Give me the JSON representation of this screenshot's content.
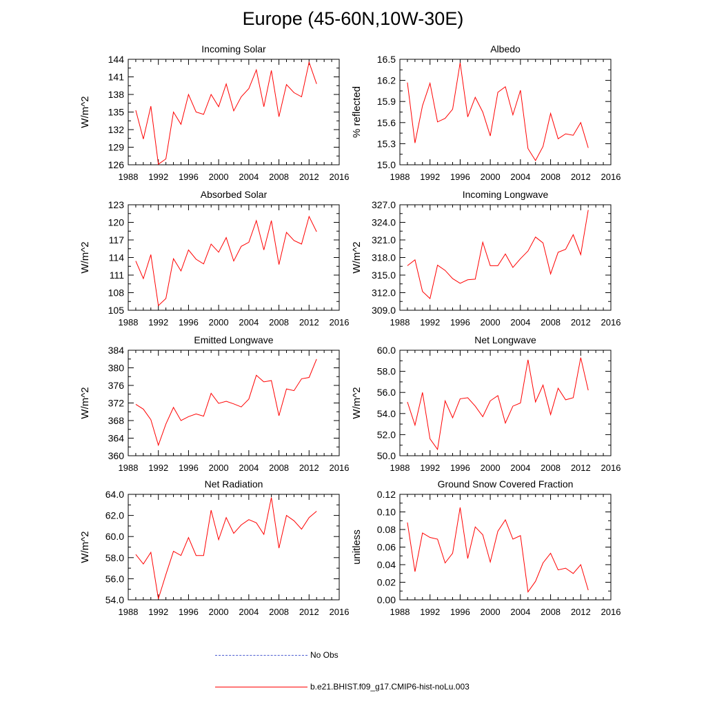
{
  "title": "Europe (45-60N,10W-30E)",
  "colors": {
    "model_line": "#ff0000",
    "obs_line": "#4a5bd0",
    "axis": "#000000"
  },
  "legend": [
    {
      "label": "No Obs",
      "style": "dashed",
      "color": "#4a5bd0"
    },
    {
      "label": "b.e21.BHIST.f09_g17.CMIP6-hist-noLu.003",
      "style": "solid",
      "color": "#ff0000"
    }
  ],
  "chart_data": [
    {
      "type": "line",
      "title": "Incoming Solar",
      "xlabel": "",
      "ylabel": "W/m^2",
      "xlim": [
        1988,
        2016
      ],
      "ylim": [
        126,
        144
      ],
      "xticks": [
        "1988",
        "1992",
        "1996",
        "2000",
        "2004",
        "2008",
        "2012",
        "2016"
      ],
      "yticks": [
        "126",
        "129",
        "132",
        "135",
        "138",
        "141",
        "144"
      ],
      "x": [
        1989,
        1990,
        1991,
        1992,
        1993,
        1994,
        1995,
        1996,
        1997,
        1998,
        1999,
        2000,
        2001,
        2002,
        2003,
        2004,
        2005,
        2006,
        2007,
        2008,
        2009,
        2010,
        2011,
        2012,
        2013
      ],
      "series": [
        {
          "values": [
            135.3,
            130.4,
            136.0,
            126.1,
            127.0,
            135.0,
            132.9,
            138.0,
            135.0,
            134.6,
            138.0,
            135.9,
            139.8,
            135.2,
            137.6,
            139.0,
            142.2,
            135.9,
            142.1,
            134.2,
            139.7,
            138.3,
            137.6,
            143.5,
            139.8
          ]
        }
      ]
    },
    {
      "type": "line",
      "title": "Albedo",
      "xlabel": "",
      "ylabel": "% reflected",
      "xlim": [
        1988,
        2016
      ],
      "ylim": [
        15.0,
        16.5
      ],
      "xticks": [
        "1988",
        "1992",
        "1996",
        "2000",
        "2004",
        "2008",
        "2012",
        "2016"
      ],
      "yticks": [
        "15.0",
        "15.3",
        "15.6",
        "15.9",
        "16.2",
        "16.5"
      ],
      "x": [
        1989,
        1990,
        1991,
        1992,
        1993,
        1994,
        1995,
        1996,
        1997,
        1998,
        1999,
        2000,
        2001,
        2002,
        2003,
        2004,
        2005,
        2006,
        2007,
        2008,
        2009,
        2010,
        2011,
        2012,
        2013
      ],
      "series": [
        {
          "values": [
            16.17,
            15.31,
            15.84,
            16.16,
            15.61,
            15.66,
            15.79,
            16.45,
            15.68,
            15.96,
            15.75,
            15.41,
            16.03,
            16.11,
            15.71,
            16.06,
            15.23,
            15.06,
            15.26,
            15.73,
            15.37,
            15.44,
            15.42,
            15.6,
            15.24
          ]
        }
      ]
    },
    {
      "type": "line",
      "title": "Absorbed Solar",
      "xlabel": "",
      "ylabel": "W/m^2",
      "xlim": [
        1988,
        2016
      ],
      "ylim": [
        105,
        123
      ],
      "xticks": [
        "1988",
        "1992",
        "1996",
        "2000",
        "2004",
        "2008",
        "2012",
        "2016"
      ],
      "yticks": [
        "105",
        "108",
        "111",
        "114",
        "117",
        "120",
        "123"
      ],
      "x": [
        1989,
        1990,
        1991,
        1992,
        1993,
        1994,
        1995,
        1996,
        1997,
        1998,
        1999,
        2000,
        2001,
        2002,
        2003,
        2004,
        2005,
        2006,
        2007,
        2008,
        2009,
        2010,
        2011,
        2012,
        2013
      ],
      "series": [
        {
          "values": [
            113.4,
            110.4,
            114.5,
            105.8,
            107.0,
            113.8,
            111.7,
            115.3,
            113.7,
            112.9,
            116.3,
            114.9,
            117.4,
            113.4,
            115.9,
            116.6,
            120.3,
            115.3,
            120.3,
            112.8,
            118.3,
            116.9,
            116.3,
            121.0,
            118.4
          ]
        }
      ]
    },
    {
      "type": "line",
      "title": "Incoming Longwave",
      "xlabel": "",
      "ylabel": "W/m^2",
      "xlim": [
        1988,
        2016
      ],
      "ylim": [
        309.0,
        327.0
      ],
      "xticks": [
        "1988",
        "1992",
        "1996",
        "2000",
        "2004",
        "2008",
        "2012",
        "2016"
      ],
      "yticks": [
        "309.0",
        "312.0",
        "315.0",
        "318.0",
        "321.0",
        "324.0",
        "327.0"
      ],
      "x": [
        1989,
        1990,
        1991,
        1992,
        1993,
        1994,
        1995,
        1996,
        1997,
        1998,
        1999,
        2000,
        2001,
        2002,
        2003,
        2004,
        2005,
        2006,
        2007,
        2008,
        2009,
        2010,
        2011,
        2012,
        2013
      ],
      "series": [
        {
          "values": [
            316.6,
            317.6,
            312.2,
            311.0,
            316.7,
            315.8,
            314.4,
            313.6,
            314.2,
            314.3,
            320.6,
            316.6,
            316.6,
            318.6,
            316.3,
            317.8,
            319.1,
            321.5,
            320.5,
            315.2,
            318.9,
            319.4,
            321.9,
            318.5,
            326.1
          ]
        }
      ]
    },
    {
      "type": "line",
      "title": "Emitted Longwave",
      "xlabel": "",
      "ylabel": "W/m^2",
      "xlim": [
        1988,
        2016
      ],
      "ylim": [
        360,
        384
      ],
      "xticks": [
        "1988",
        "1992",
        "1996",
        "2000",
        "2004",
        "2008",
        "2012",
        "2016"
      ],
      "yticks": [
        "360",
        "364",
        "368",
        "372",
        "376",
        "380",
        "384"
      ],
      "x": [
        1989,
        1990,
        1991,
        1992,
        1993,
        1994,
        1995,
        1996,
        1997,
        1998,
        1999,
        2000,
        2001,
        2002,
        2003,
        2004,
        2005,
        2006,
        2007,
        2008,
        2009,
        2010,
        2011,
        2012,
        2013
      ],
      "series": [
        {
          "values": [
            371.7,
            370.6,
            368.2,
            362.4,
            367.2,
            371.0,
            368.0,
            368.9,
            369.5,
            369.0,
            374.2,
            371.9,
            372.4,
            371.8,
            371.1,
            372.9,
            378.3,
            376.8,
            377.1,
            369.1,
            375.2,
            374.8,
            377.5,
            377.8,
            382.0
          ]
        }
      ]
    },
    {
      "type": "line",
      "title": "Net Longwave",
      "xlabel": "",
      "ylabel": "W/m^2",
      "xlim": [
        1988,
        2016
      ],
      "ylim": [
        50.0,
        60.0
      ],
      "xticks": [
        "1988",
        "1992",
        "1996",
        "2000",
        "2004",
        "2008",
        "2012",
        "2016"
      ],
      "yticks": [
        "50.0",
        "52.0",
        "54.0",
        "56.0",
        "58.0",
        "60.0"
      ],
      "x": [
        1989,
        1990,
        1991,
        1992,
        1993,
        1994,
        1995,
        1996,
        1997,
        1998,
        1999,
        2000,
        2001,
        2002,
        2003,
        2004,
        2005,
        2006,
        2007,
        2008,
        2009,
        2010,
        2011,
        2012,
        2013
      ],
      "series": [
        {
          "values": [
            55.1,
            52.9,
            56.0,
            51.6,
            50.6,
            55.2,
            53.6,
            55.4,
            55.5,
            54.7,
            53.7,
            55.2,
            55.7,
            53.1,
            54.7,
            55.0,
            59.1,
            55.1,
            56.7,
            53.9,
            56.4,
            55.3,
            55.5,
            59.3,
            56.2
          ]
        }
      ]
    },
    {
      "type": "line",
      "title": "Net Radiation",
      "xlabel": "",
      "ylabel": "W/m^2",
      "xlim": [
        1988,
        2016
      ],
      "ylim": [
        54.0,
        64.0
      ],
      "xticks": [
        "1988",
        "1992",
        "1996",
        "2000",
        "2004",
        "2008",
        "2012",
        "2016"
      ],
      "yticks": [
        "54.0",
        "56.0",
        "58.0",
        "60.0",
        "62.0",
        "64.0"
      ],
      "x": [
        1989,
        1990,
        1991,
        1992,
        1993,
        1994,
        1995,
        1996,
        1997,
        1998,
        1999,
        2000,
        2001,
        2002,
        2003,
        2004,
        2005,
        2006,
        2007,
        2008,
        2009,
        2010,
        2011,
        2012,
        2013
      ],
      "series": [
        {
          "values": [
            58.3,
            57.4,
            58.5,
            54.1,
            56.4,
            58.6,
            58.2,
            59.9,
            58.2,
            58.2,
            62.5,
            59.7,
            61.8,
            60.3,
            61.1,
            61.6,
            61.3,
            60.2,
            63.7,
            58.9,
            62.0,
            61.5,
            60.7,
            61.8,
            62.4
          ]
        }
      ]
    },
    {
      "type": "line",
      "title": "Ground Snow Covered Fraction",
      "xlabel": "",
      "ylabel": "unitless",
      "xlim": [
        1988,
        2016
      ],
      "ylim": [
        0.0,
        0.12
      ],
      "xticks": [
        "1988",
        "1992",
        "1996",
        "2000",
        "2004",
        "2008",
        "2012",
        "2016"
      ],
      "yticks": [
        "0.00",
        "0.02",
        "0.04",
        "0.06",
        "0.08",
        "0.10",
        "0.12"
      ],
      "x": [
        1989,
        1990,
        1991,
        1992,
        1993,
        1994,
        1995,
        1996,
        1997,
        1998,
        1999,
        2000,
        2001,
        2002,
        2003,
        2004,
        2005,
        2006,
        2007,
        2008,
        2009,
        2010,
        2011,
        2012,
        2013
      ],
      "series": [
        {
          "values": [
            0.088,
            0.032,
            0.076,
            0.071,
            0.069,
            0.042,
            0.053,
            0.105,
            0.047,
            0.083,
            0.074,
            0.043,
            0.078,
            0.091,
            0.069,
            0.073,
            0.009,
            0.021,
            0.042,
            0.053,
            0.034,
            0.036,
            0.03,
            0.04,
            0.011
          ]
        }
      ]
    }
  ]
}
